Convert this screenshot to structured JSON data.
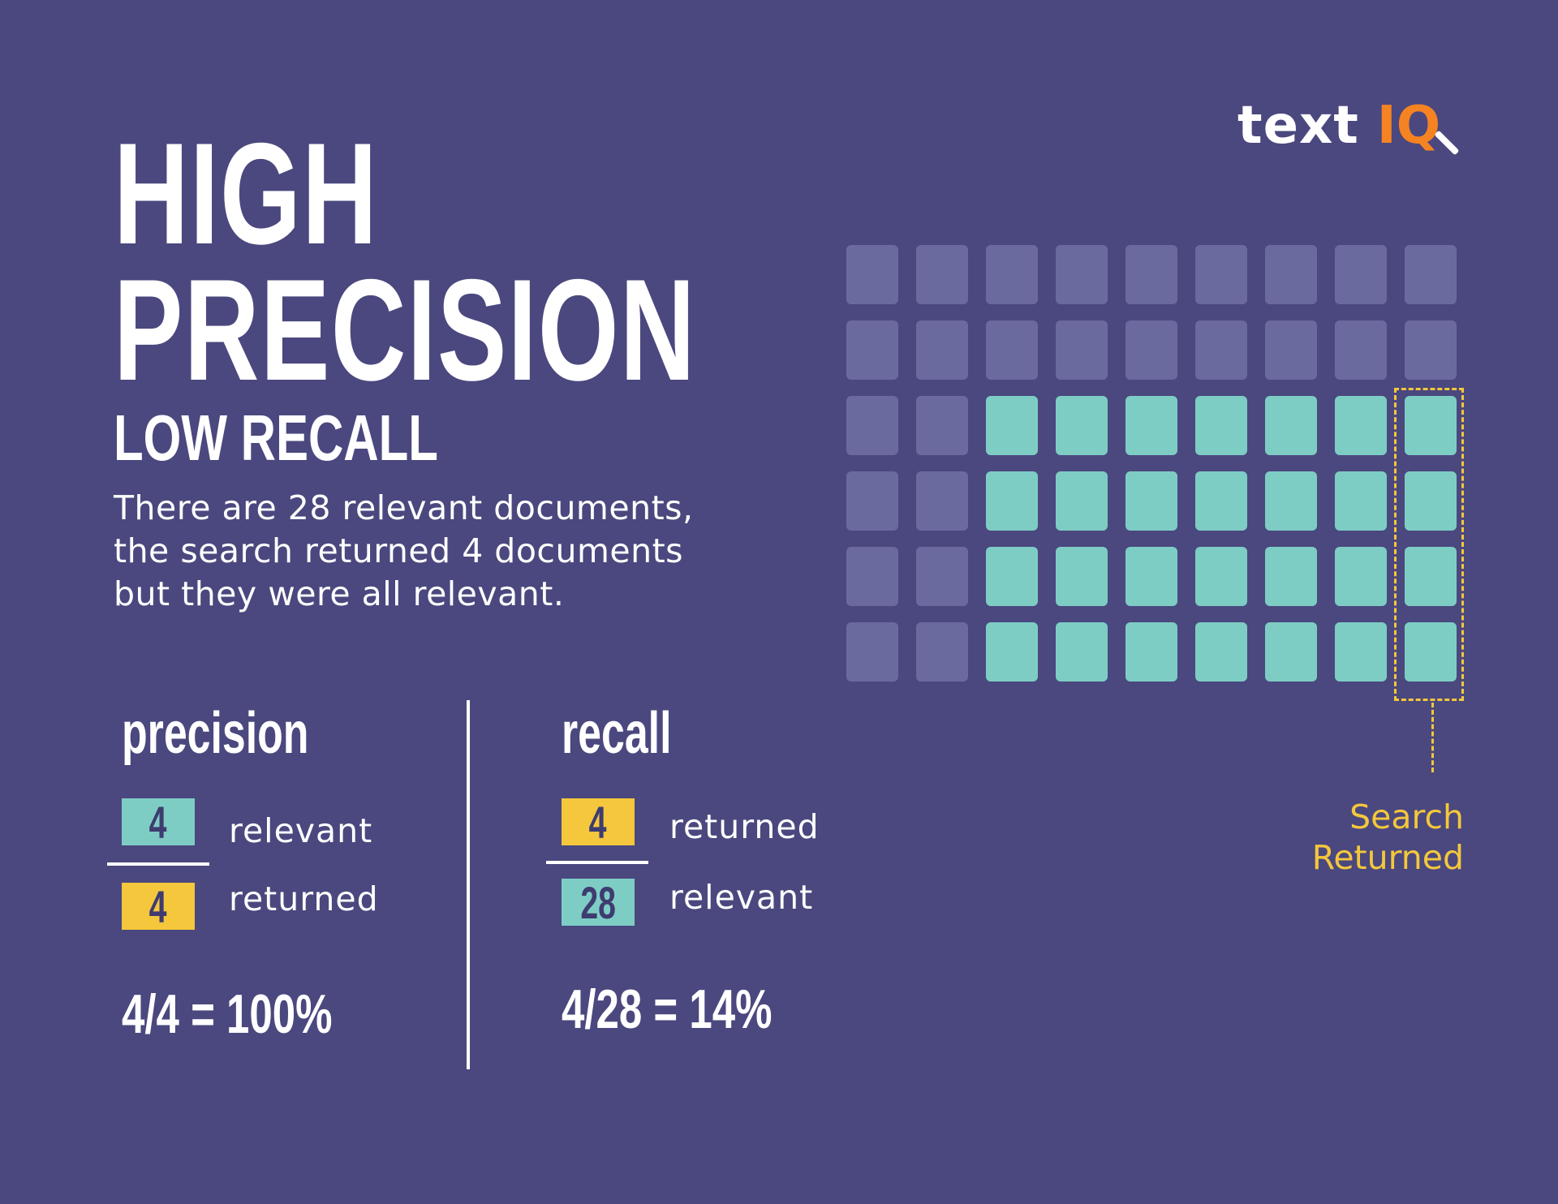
{
  "header": {
    "title_line1": "HIGH",
    "title_line2": "PRECISION",
    "subtitle": "LOW RECALL",
    "description": "There are 28 relevant documents, the search returned 4 documents but they were all relevant."
  },
  "logo": {
    "text": "text",
    "iq": "IQ"
  },
  "colors": {
    "background": "#4a487e",
    "relevant": "#7ecdc5",
    "other": "#6b6a9f",
    "returned": "#f4c73c",
    "logo_accent": "#f58322"
  },
  "document_grid": {
    "rows": 6,
    "columns": 9,
    "relevant_count": 28,
    "returned_count": 4,
    "returned_relevant_count": 4
  },
  "search_label": {
    "line1": "Search",
    "line2": "Returned"
  },
  "precision": {
    "title": "precision",
    "numerator": "4",
    "numerator_label": "relevant",
    "denominator": "4",
    "denominator_label": "returned",
    "result": "4/4 = 100%"
  },
  "recall": {
    "title": "recall",
    "numerator": "4",
    "numerator_label": "returned",
    "denominator": "28",
    "denominator_label": "relevant",
    "result": "4/28 = 14%"
  }
}
